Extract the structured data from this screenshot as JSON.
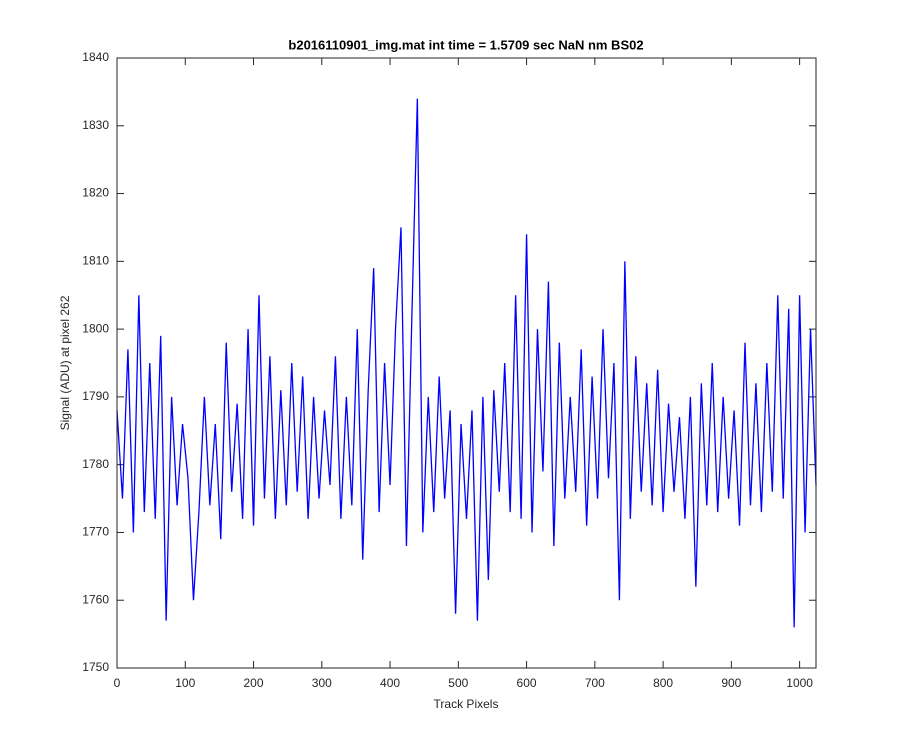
{
  "chart_data": {
    "type": "line",
    "title": "b2016110901_img.mat int time = 1.5709 sec  NaN nm BS02",
    "x_label": "Track Pixels",
    "y_label": "Signal (ADU) at pixel 262",
    "x": [
      0,
      8,
      16,
      24,
      32,
      40,
      48,
      56,
      64,
      72,
      80,
      88,
      96,
      104,
      112,
      120,
      128,
      136,
      144,
      152,
      160,
      168,
      176,
      184,
      192,
      200,
      208,
      216,
      224,
      232,
      240,
      248,
      256,
      264,
      272,
      280,
      288,
      296,
      304,
      312,
      320,
      328,
      336,
      344,
      352,
      360,
      368,
      376,
      384,
      392,
      400,
      408,
      416,
      424,
      432,
      440,
      448,
      456,
      464,
      472,
      480,
      488,
      496,
      504,
      512,
      520,
      528,
      536,
      544,
      552,
      560,
      568,
      576,
      584,
      592,
      600,
      608,
      616,
      624,
      632,
      640,
      648,
      656,
      664,
      672,
      680,
      688,
      696,
      704,
      712,
      720,
      728,
      736,
      744,
      752,
      760,
      768,
      776,
      784,
      792,
      800,
      808,
      816,
      824,
      832,
      840,
      848,
      856,
      864,
      872,
      880,
      888,
      896,
      904,
      912,
      920,
      928,
      936,
      944,
      952,
      960,
      968,
      976,
      984,
      992,
      1000,
      1008,
      1016,
      1024
    ],
    "series": [
      {
        "name": "signal",
        "color": "#0000ff",
        "values": [
          1788,
          1775,
          1797,
          1770,
          1805,
          1773,
          1795,
          1772,
          1799,
          1757,
          1790,
          1774,
          1786,
          1778,
          1760,
          1773,
          1790,
          1774,
          1786,
          1769,
          1798,
          1776,
          1789,
          1772,
          1800,
          1771,
          1805,
          1775,
          1796,
          1772,
          1791,
          1774,
          1795,
          1776,
          1793,
          1772,
          1790,
          1775,
          1788,
          1777,
          1796,
          1772,
          1790,
          1774,
          1800,
          1766,
          1791,
          1809,
          1773,
          1795,
          1777,
          1800,
          1815,
          1768,
          1802,
          1834,
          1770,
          1790,
          1773,
          1793,
          1775,
          1788,
          1758,
          1786,
          1772,
          1788,
          1757,
          1790,
          1763,
          1791,
          1776,
          1795,
          1773,
          1805,
          1772,
          1814,
          1770,
          1800,
          1779,
          1807,
          1768,
          1798,
          1775,
          1790,
          1776,
          1797,
          1771,
          1793,
          1775,
          1800,
          1778,
          1795,
          1760,
          1810,
          1772,
          1796,
          1776,
          1792,
          1774,
          1794,
          1773,
          1789,
          1776,
          1787,
          1772,
          1790,
          1762,
          1792,
          1774,
          1795,
          1773,
          1790,
          1775,
          1788,
          1771,
          1798,
          1774,
          1792,
          1773,
          1795,
          1776,
          1805,
          1775,
          1803,
          1756,
          1805,
          1770,
          1800,
          1777
        ]
      }
    ],
    "xlim": [
      0,
      1024
    ],
    "ylim": [
      1750,
      1840
    ],
    "xticks": [
      0,
      100,
      200,
      300,
      400,
      500,
      600,
      700,
      800,
      900,
      1000
    ],
    "yticks": [
      1750,
      1760,
      1770,
      1780,
      1790,
      1800,
      1810,
      1820,
      1830,
      1840
    ]
  }
}
